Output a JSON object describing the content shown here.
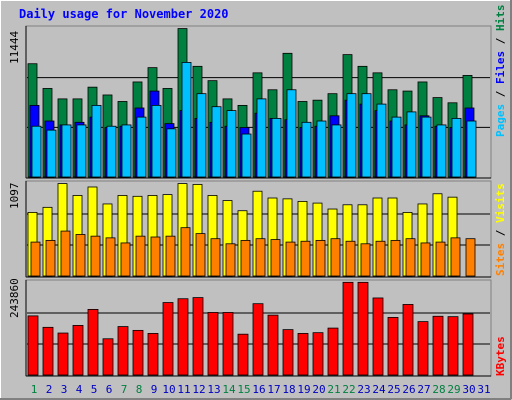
{
  "title": "Daily usage for November 2020",
  "colors": {
    "background": "#c0c0c0",
    "title": "#0000ff",
    "hits": "#008040",
    "files": "#0000ff",
    "pages": "#00c0ff",
    "visits": "#ffff00",
    "sites": "#ff8000",
    "kbytes": "#ff0000",
    "weekend_day_label": "#008040",
    "weekday_label": "#0000c0"
  },
  "panels": {
    "top": {
      "max_label": "11444",
      "legend": [
        "Pages",
        "Files",
        "Hits"
      ]
    },
    "middle": {
      "max_label": "1097",
      "legend": [
        "Sites",
        "Visits"
      ]
    },
    "bottom": {
      "max_label": "243860",
      "legend": [
        "KBytes"
      ]
    }
  },
  "chart_data": {
    "type": "bar",
    "title": "Daily usage for November 2020",
    "categories": [
      "1",
      "2",
      "3",
      "4",
      "5",
      "6",
      "7",
      "8",
      "9",
      "10",
      "11",
      "12",
      "13",
      "14",
      "15",
      "16",
      "17",
      "18",
      "19",
      "20",
      "21",
      "22",
      "23",
      "24",
      "25",
      "26",
      "27",
      "28",
      "29",
      "30",
      "31"
    ],
    "weekend_days": [
      "1",
      "7",
      "8",
      "14",
      "15",
      "21",
      "22",
      "28",
      "29"
    ],
    "panels": [
      {
        "name": "hits-files-pages",
        "ylim": [
          0,
          11444
        ],
        "max_label": "11444",
        "series": [
          {
            "name": "Hits",
            "values": [
              8700,
              6800,
              6000,
              6000,
              6900,
              6300,
              5800,
              7300,
              8400,
              6800,
              11400,
              8500,
              7400,
              6000,
              5500,
              8000,
              6700,
              9500,
              5800,
              5900,
              6400,
              9400,
              8500,
              8000,
              6700,
              6600,
              7300,
              6100,
              5700,
              7800,
              0
            ]
          },
          {
            "name": "Files",
            "values": [
              5500,
              4300,
              4000,
              4200,
              4600,
              3800,
              3900,
              5300,
              6600,
              4100,
              5100,
              4500,
              4200,
              3900,
              3800,
              4900,
              4500,
              4400,
              3800,
              3900,
              4700,
              5900,
              5600,
              5100,
              4300,
              4000,
              4700,
              3900,
              3800,
              5300,
              0
            ]
          },
          {
            "name": "Pages",
            "values": [
              3900,
              3600,
              4000,
              4000,
              5500,
              3900,
              4000,
              4600,
              5500,
              3700,
              8800,
              6400,
              5400,
              5100,
              3300,
              6000,
              4500,
              6700,
              4200,
              4300,
              4000,
              6400,
              6400,
              5600,
              4600,
              5000,
              4600,
              4000,
              4500,
              4300,
              0
            ]
          }
        ]
      },
      {
        "name": "visits-sites",
        "ylim": [
          0,
          1097
        ],
        "max_label": "1097",
        "series": [
          {
            "name": "Visits",
            "values": [
              750,
              810,
              1090,
              950,
              1050,
              850,
              950,
              940,
              950,
              960,
              1090,
              1080,
              950,
              890,
              770,
              1000,
              920,
              910,
              880,
              860,
              790,
              840,
              840,
              920,
              920,
              750,
              850,
              970,
              930,
              0,
              0
            ]
          },
          {
            "name": "Sites",
            "values": [
              400,
              420,
              530,
              490,
              470,
              450,
              390,
              470,
              460,
              470,
              570,
              500,
              440,
              380,
              420,
              440,
              430,
              400,
              410,
              420,
              440,
              410,
              380,
              410,
              420,
              440,
              390,
              400,
              450,
              440,
              0
            ]
          }
        ]
      },
      {
        "name": "kbytes",
        "ylim": [
          0,
          243860
        ],
        "max_label": "243860",
        "series": [
          {
            "name": "KBytes",
            "values": [
              155000,
              125000,
              110000,
              130000,
              172000,
              95000,
              127000,
              117000,
              109000,
              190000,
              200000,
              203000,
              164000,
              164000,
              107000,
              187000,
              157000,
              119000,
              109000,
              111000,
              123000,
              243000,
              243000,
              202000,
              151000,
              185000,
              140000,
              154000,
              153000,
              160000,
              0
            ]
          }
        ]
      }
    ]
  }
}
